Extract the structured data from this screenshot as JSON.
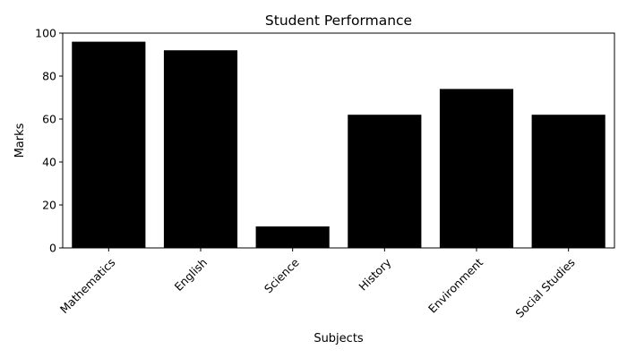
{
  "chart_data": {
    "type": "bar",
    "title": "Student Performance",
    "xlabel": "Subjects",
    "ylabel": "Marks",
    "categories": [
      "Mathematics",
      "English",
      "Science",
      "History",
      "Environment",
      "Social Studies"
    ],
    "values": [
      96,
      92,
      10,
      62,
      74,
      62
    ],
    "ylim": [
      0,
      100
    ],
    "yticks": [
      0,
      20,
      40,
      60,
      80,
      100
    ],
    "grid": false,
    "bar_color": "#000000"
  }
}
